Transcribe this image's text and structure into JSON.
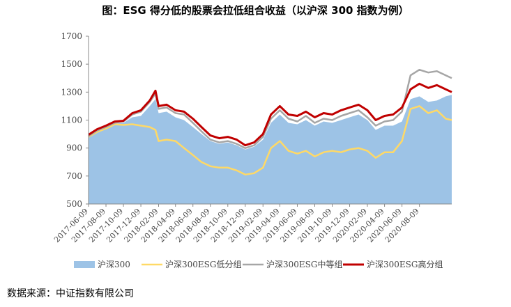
{
  "title": "图：ESG 得分低的股票会拉低组合收益（以沪深 300 指数为例）",
  "source": "数据来源：中证指数有限公司",
  "chart_data": {
    "type": "line",
    "ylim": [
      500,
      1700
    ],
    "yticks": [
      500,
      700,
      900,
      1100,
      1300,
      1500,
      1700
    ],
    "xlim": [
      "2017-06-09",
      "2020-11-30"
    ],
    "xticks": [
      "2017-06-09",
      "2017-08-09",
      "2017-10-09",
      "2017-12-09",
      "2018-02-09",
      "2018-04-09",
      "2018-06-09",
      "2018-08-09",
      "2018-10-09",
      "2018-12-09",
      "2019-02-09",
      "2019-04-09",
      "2019-06-09",
      "2019-08-09",
      "2019-10-09",
      "2019-12-09",
      "2020-02-09",
      "2020-04-09",
      "2020-06-09",
      "2020-08-09"
    ],
    "grid": false,
    "legend_position": "bottom",
    "x": [
      "2017-06-09",
      "2017-07-09",
      "2017-08-09",
      "2017-09-09",
      "2017-10-09",
      "2017-11-09",
      "2017-12-09",
      "2018-01-09",
      "2018-01-29",
      "2018-02-09",
      "2018-03-09",
      "2018-04-09",
      "2018-05-09",
      "2018-06-09",
      "2018-07-09",
      "2018-08-09",
      "2018-09-09",
      "2018-10-09",
      "2018-11-09",
      "2018-12-09",
      "2019-01-09",
      "2019-02-09",
      "2019-03-09",
      "2019-04-09",
      "2019-05-09",
      "2019-06-09",
      "2019-07-09",
      "2019-08-09",
      "2019-09-09",
      "2019-10-09",
      "2019-11-09",
      "2019-12-09",
      "2020-01-09",
      "2020-02-09",
      "2020-03-09",
      "2020-04-09",
      "2020-05-09",
      "2020-06-09",
      "2020-07-09",
      "2020-08-09",
      "2020-09-09",
      "2020-10-09",
      "2020-11-09",
      "2020-11-30"
    ],
    "series": [
      {
        "name": "沪深300",
        "type": "area",
        "color": "#9dc3e6",
        "values": [
          985,
          1020,
          1045,
          1075,
          1080,
          1120,
          1130,
          1200,
          1250,
          1150,
          1160,
          1120,
          1100,
          1050,
          1000,
          950,
          930,
          940,
          920,
          890,
          910,
          960,
          1080,
          1140,
          1080,
          1070,
          1100,
          1060,
          1090,
          1080,
          1100,
          1120,
          1140,
          1100,
          1030,
          1060,
          1060,
          1090,
          1250,
          1270,
          1230,
          1240,
          1270,
          1280
        ]
      },
      {
        "name": "沪深300ESG低分组",
        "type": "line",
        "color": "#ffd966",
        "values": [
          980,
          1015,
          1040,
          1070,
          1065,
          1070,
          1060,
          1050,
          1030,
          950,
          960,
          950,
          900,
          850,
          800,
          770,
          760,
          760,
          740,
          710,
          720,
          760,
          900,
          950,
          880,
          860,
          880,
          840,
          870,
          880,
          870,
          890,
          900,
          880,
          830,
          870,
          870,
          950,
          1180,
          1200,
          1150,
          1170,
          1110,
          1100
        ]
      },
      {
        "name": "沪深300ESG中等组",
        "type": "line",
        "color": "#a6a6a6",
        "values": [
          985,
          1025,
          1050,
          1080,
          1090,
          1140,
          1160,
          1230,
          1290,
          1180,
          1190,
          1150,
          1140,
          1080,
          1020,
          960,
          940,
          950,
          930,
          900,
          920,
          980,
          1110,
          1170,
          1110,
          1090,
          1130,
          1080,
          1110,
          1100,
          1130,
          1150,
          1170,
          1120,
          1060,
          1090,
          1100,
          1160,
          1420,
          1460,
          1440,
          1450,
          1420,
          1400
        ]
      },
      {
        "name": "沪深300ESG高分组",
        "type": "line",
        "color": "#c00000",
        "values": [
          995,
          1035,
          1060,
          1090,
          1095,
          1150,
          1170,
          1240,
          1310,
          1200,
          1210,
          1170,
          1160,
          1110,
          1050,
          990,
          970,
          980,
          960,
          920,
          940,
          1000,
          1140,
          1200,
          1140,
          1130,
          1160,
          1120,
          1150,
          1140,
          1170,
          1190,
          1210,
          1170,
          1100,
          1130,
          1140,
          1190,
          1320,
          1360,
          1330,
          1350,
          1320,
          1300
        ]
      }
    ]
  }
}
